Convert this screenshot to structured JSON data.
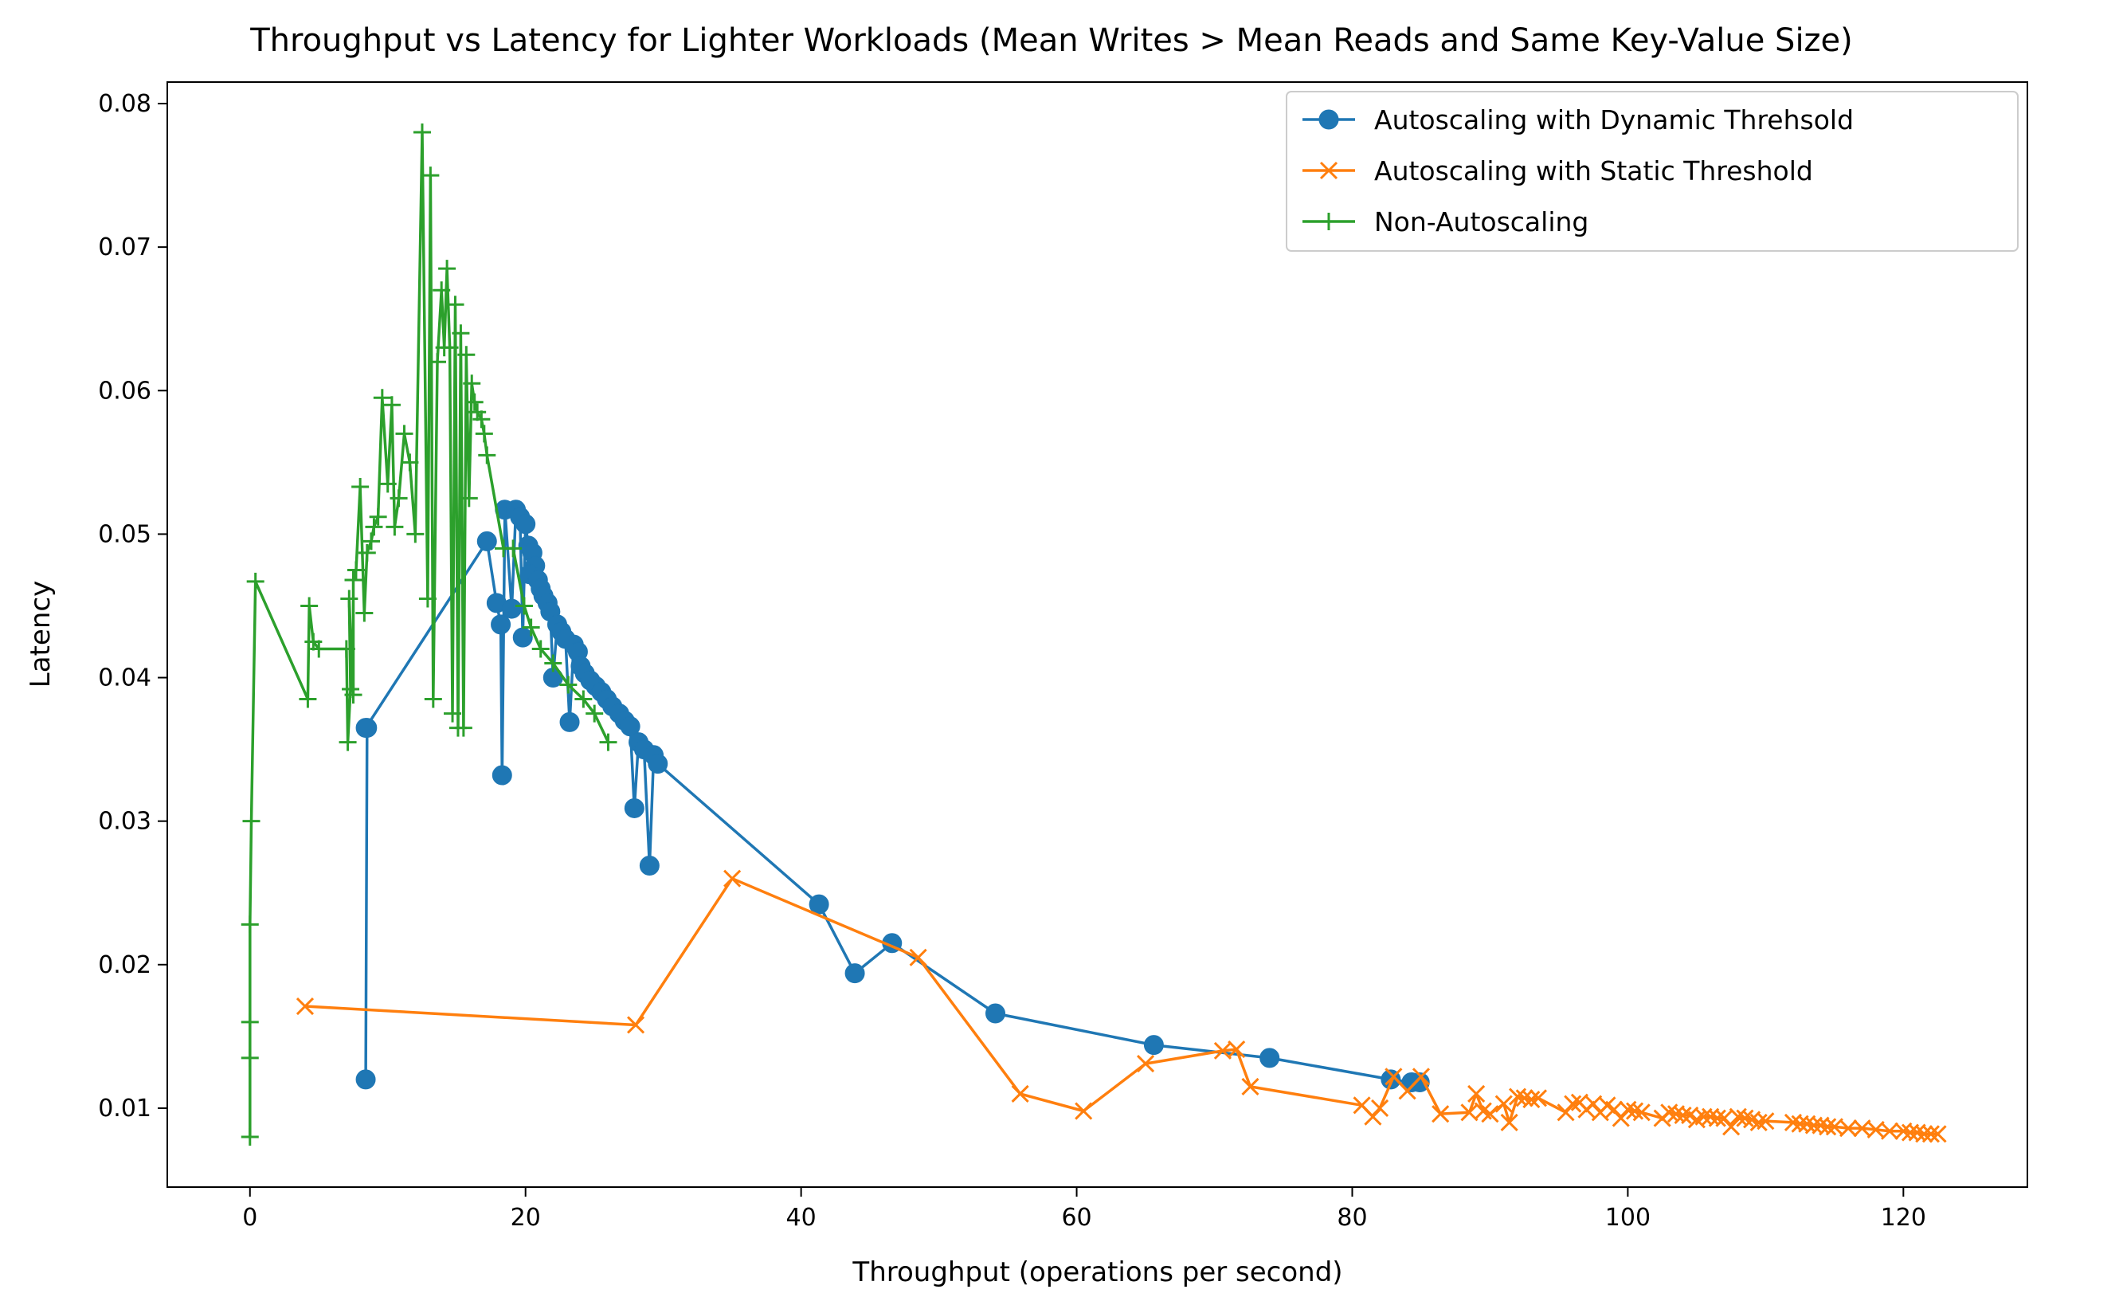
{
  "chart_data": {
    "type": "line",
    "title": "Throughput vs Latency for Lighter Workloads (Mean Writes > Mean Reads and Same Key-Value Size)",
    "xlabel": "Throughput (operations per second)",
    "ylabel": "Latency",
    "xlim": [
      -6,
      129
    ],
    "ylim": [
      0.0045,
      0.0815
    ],
    "xticks": [
      0,
      20,
      40,
      60,
      80,
      100,
      120
    ],
    "xtick_labels": [
      "0",
      "20",
      "40",
      "60",
      "80",
      "100",
      "120"
    ],
    "yticks": [
      0.01,
      0.02,
      0.03,
      0.04,
      0.05,
      0.06,
      0.07,
      0.08
    ],
    "ytick_labels": [
      "0.01",
      "0.02",
      "0.03",
      "0.04",
      "0.05",
      "0.06",
      "0.07",
      "0.08"
    ],
    "grid": false,
    "legend_position": "top-right",
    "series": [
      {
        "name": "Autoscaling with Dynamic Threhsold",
        "color": "#1f77b4",
        "marker": "circle",
        "x": [
          8.4,
          8.5,
          8.4,
          17.2,
          17.9,
          18.2,
          18.3,
          18.5,
          19.0,
          19.3,
          19.6,
          19.8,
          20.0,
          20.2,
          20.5,
          20.7,
          20.3,
          20.9,
          21.1,
          21.3,
          21.6,
          21.8,
          22.0,
          22.3,
          22.6,
          22.9,
          23.2,
          23.5,
          23.8,
          24.0,
          24.3,
          24.7,
          25.1,
          25.5,
          25.9,
          26.3,
          26.8,
          27.2,
          27.6,
          27.9,
          28.2,
          28.6,
          29.0,
          29.3,
          29.6,
          41.3,
          43.9,
          46.6,
          54.1,
          65.6,
          74.0,
          82.8,
          84.3,
          84.9
        ],
        "y": [
          0.012,
          0.0365,
          0.0365,
          0.0495,
          0.0452,
          0.0437,
          0.0332,
          0.0517,
          0.0448,
          0.0517,
          0.0512,
          0.0428,
          0.0507,
          0.0492,
          0.0487,
          0.0478,
          0.0472,
          0.0468,
          0.0462,
          0.0457,
          0.0452,
          0.0446,
          0.04,
          0.0437,
          0.0432,
          0.0427,
          0.0369,
          0.0423,
          0.0418,
          0.0408,
          0.0403,
          0.0398,
          0.0394,
          0.039,
          0.0385,
          0.038,
          0.0375,
          0.037,
          0.0366,
          0.0309,
          0.0355,
          0.035,
          0.0269,
          0.0346,
          0.034,
          0.0242,
          0.0194,
          0.0215,
          0.0166,
          0.0144,
          0.0135,
          0.012,
          0.0118,
          0.0118
        ]
      },
      {
        "name": "Autoscaling with Static Threshold",
        "color": "#ff7f0e",
        "marker": "x",
        "x": [
          4.0,
          28.0,
          35.0,
          48.5,
          55.9,
          60.5,
          65.0,
          70.6,
          71.6,
          72.6,
          80.7,
          81.5,
          82.0,
          83.0,
          84.0,
          85.0,
          86.4,
          88.5,
          89.0,
          89.5,
          90.0,
          91.0,
          91.4,
          92.0,
          92.5,
          93.0,
          93.5,
          95.5,
          96.0,
          96.5,
          97.0,
          97.5,
          98.0,
          98.5,
          99.0,
          99.5,
          100.0,
          100.5,
          101.0,
          102.5,
          103.0,
          103.5,
          104.0,
          104.5,
          105.0,
          105.5,
          106.0,
          106.5,
          107.0,
          107.5,
          108.0,
          108.5,
          109.0,
          109.5,
          110.0,
          112.0,
          112.5,
          113.0,
          113.5,
          114.0,
          114.5,
          115.0,
          116.0,
          117.0,
          118.0,
          119.0,
          120.0,
          120.5,
          121.0,
          121.5,
          122.0,
          122.5
        ],
        "y": [
          0.0171,
          0.0158,
          0.026,
          0.0205,
          0.011,
          0.0098,
          0.0131,
          0.014,
          0.0141,
          0.0115,
          0.0102,
          0.0094,
          0.01,
          0.0122,
          0.0112,
          0.0122,
          0.0096,
          0.0097,
          0.011,
          0.0098,
          0.0096,
          0.0103,
          0.009,
          0.0108,
          0.0107,
          0.0106,
          0.0107,
          0.0097,
          0.0103,
          0.0104,
          0.0099,
          0.0103,
          0.0097,
          0.0102,
          0.0099,
          0.0093,
          0.0099,
          0.0098,
          0.0097,
          0.0093,
          0.0097,
          0.0096,
          0.0095,
          0.0095,
          0.0092,
          0.0094,
          0.0094,
          0.0093,
          0.0093,
          0.0087,
          0.0094,
          0.0093,
          0.0092,
          0.009,
          0.0091,
          0.009,
          0.0089,
          0.0089,
          0.0088,
          0.0088,
          0.0087,
          0.0087,
          0.0086,
          0.0086,
          0.0085,
          0.0084,
          0.0084,
          0.0083,
          0.0083,
          0.0082,
          0.0082,
          0.0082
        ]
      },
      {
        "name": "Non-Autoscaling",
        "color": "#2ca02c",
        "marker": "plus",
        "x": [
          0.0,
          0.0,
          0.0,
          0.0,
          0.1,
          0.4,
          4.2,
          4.3,
          4.6,
          5.0,
          7.0,
          7.1,
          7.3,
          7.2,
          7.5,
          7.5,
          7.7,
          8.0,
          8.3,
          8.5,
          8.8,
          9.0,
          9.3,
          9.6,
          10.0,
          10.3,
          10.5,
          10.8,
          11.2,
          11.6,
          12.0,
          12.5,
          12.9,
          13.1,
          13.3,
          13.6,
          13.9,
          14.1,
          14.3,
          14.5,
          14.7,
          14.9,
          15.1,
          15.3,
          15.5,
          15.7,
          15.9,
          16.1,
          16.3,
          16.5,
          16.8,
          17.0,
          17.2,
          18.4,
          19.1,
          19.9,
          20.4,
          21.1,
          22.0,
          23.1,
          24.2,
          25.0,
          26.0
        ],
        "y": [
          0.008,
          0.0135,
          0.016,
          0.0228,
          0.03,
          0.0467,
          0.0385,
          0.045,
          0.0425,
          0.042,
          0.042,
          0.0355,
          0.0392,
          0.0455,
          0.0388,
          0.0468,
          0.0475,
          0.0533,
          0.0445,
          0.0487,
          0.0495,
          0.0505,
          0.0512,
          0.0595,
          0.0535,
          0.059,
          0.0505,
          0.0525,
          0.057,
          0.055,
          0.05,
          0.078,
          0.0455,
          0.075,
          0.0385,
          0.062,
          0.067,
          0.063,
          0.0685,
          0.063,
          0.0375,
          0.066,
          0.0365,
          0.064,
          0.0365,
          0.0625,
          0.0525,
          0.0605,
          0.0592,
          0.0585,
          0.058,
          0.057,
          0.0555,
          0.049,
          0.049,
          0.045,
          0.0435,
          0.042,
          0.041,
          0.0395,
          0.0385,
          0.0375,
          0.0355
        ]
      }
    ]
  }
}
